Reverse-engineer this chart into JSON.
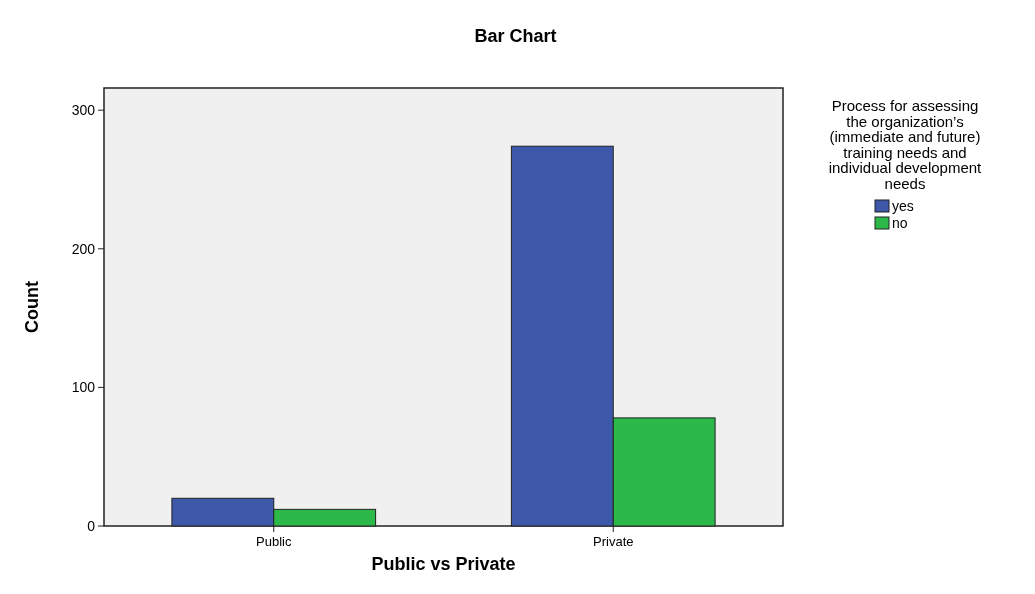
{
  "chart_data": {
    "type": "bar",
    "title": "Bar Chart",
    "xlabel": "Public vs Private",
    "ylabel": "Count",
    "legend_title": "Process for assessing the organization’s (immediate and future) training needs and individual development needs",
    "categories": [
      "Public",
      "Private"
    ],
    "series": [
      {
        "name": "yes",
        "color": "#3e58a9",
        "values": [
          20,
          274
        ]
      },
      {
        "name": "no",
        "color": "#2db84a",
        "values": [
          12,
          78
        ]
      }
    ],
    "ylim": [
      0,
      316
    ],
    "yticks": [
      0,
      100,
      200,
      300
    ],
    "grid": false,
    "legend": "top right"
  }
}
